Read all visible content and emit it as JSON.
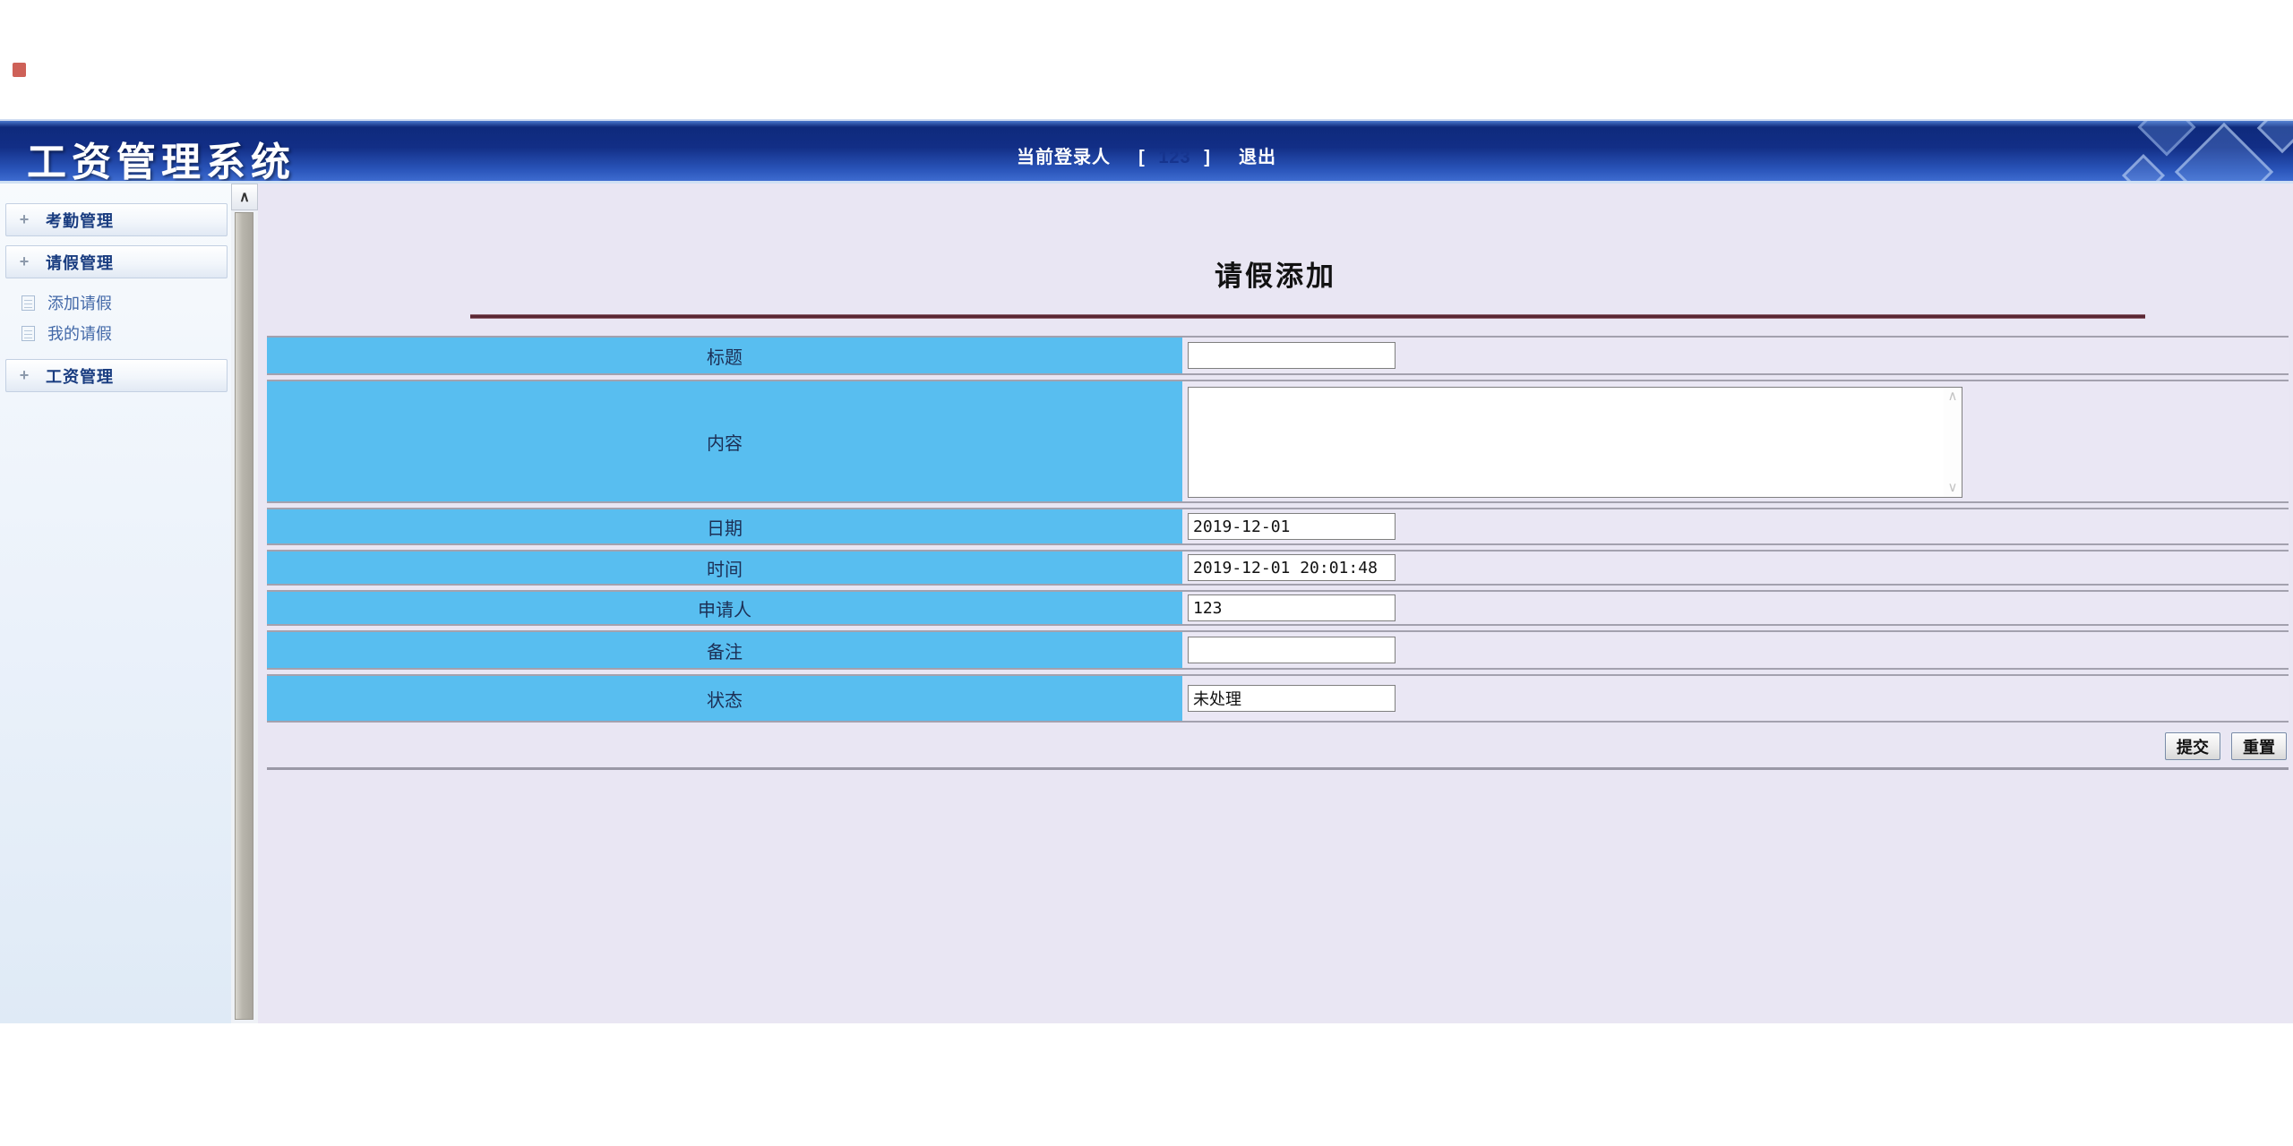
{
  "header": {
    "title": "工资管理系统",
    "login_label": "当前登录人",
    "bracket_open": "[",
    "username": "123",
    "bracket_close": "]",
    "logout_label": "退出"
  },
  "sidebar": {
    "scroll_up_icon": "∧",
    "expand_icon": "+",
    "groups": {
      "attendance": {
        "label": "考勤管理"
      },
      "leave": {
        "label": "请假管理"
      },
      "salary": {
        "label": "工资管理"
      }
    },
    "leave_subitems": {
      "add_leave": {
        "label": "添加请假"
      },
      "my_leave": {
        "label": "我的请假"
      }
    }
  },
  "main": {
    "page_title": "请假添加",
    "form": {
      "rows": [
        {
          "label": "标题",
          "type": "input",
          "value": ""
        },
        {
          "label": "内容",
          "type": "textarea",
          "value": ""
        },
        {
          "label": "日期",
          "type": "input",
          "value": "2019-12-01"
        },
        {
          "label": "时间",
          "type": "input",
          "value": "2019-12-01 20:01:48"
        },
        {
          "label": "申请人",
          "type": "input",
          "value": "123"
        },
        {
          "label": "备注",
          "type": "input",
          "value": ""
        },
        {
          "label": "状态",
          "type": "input",
          "value": "未处理"
        }
      ],
      "submit_label": "提交",
      "reset_label": "重置"
    },
    "textarea_scroll_up_icon": "∧",
    "textarea_scroll_down_icon": "∨"
  },
  "colors": {
    "header_blue_dark": "#122e86",
    "header_blue_light": "#3e6cd0",
    "form_label_cell_blue": "#58bef0",
    "content_background_lavender": "#e9e6f3",
    "title_rule_maroon": "#5a2733",
    "sidebar_text_navy": "#193c80"
  }
}
